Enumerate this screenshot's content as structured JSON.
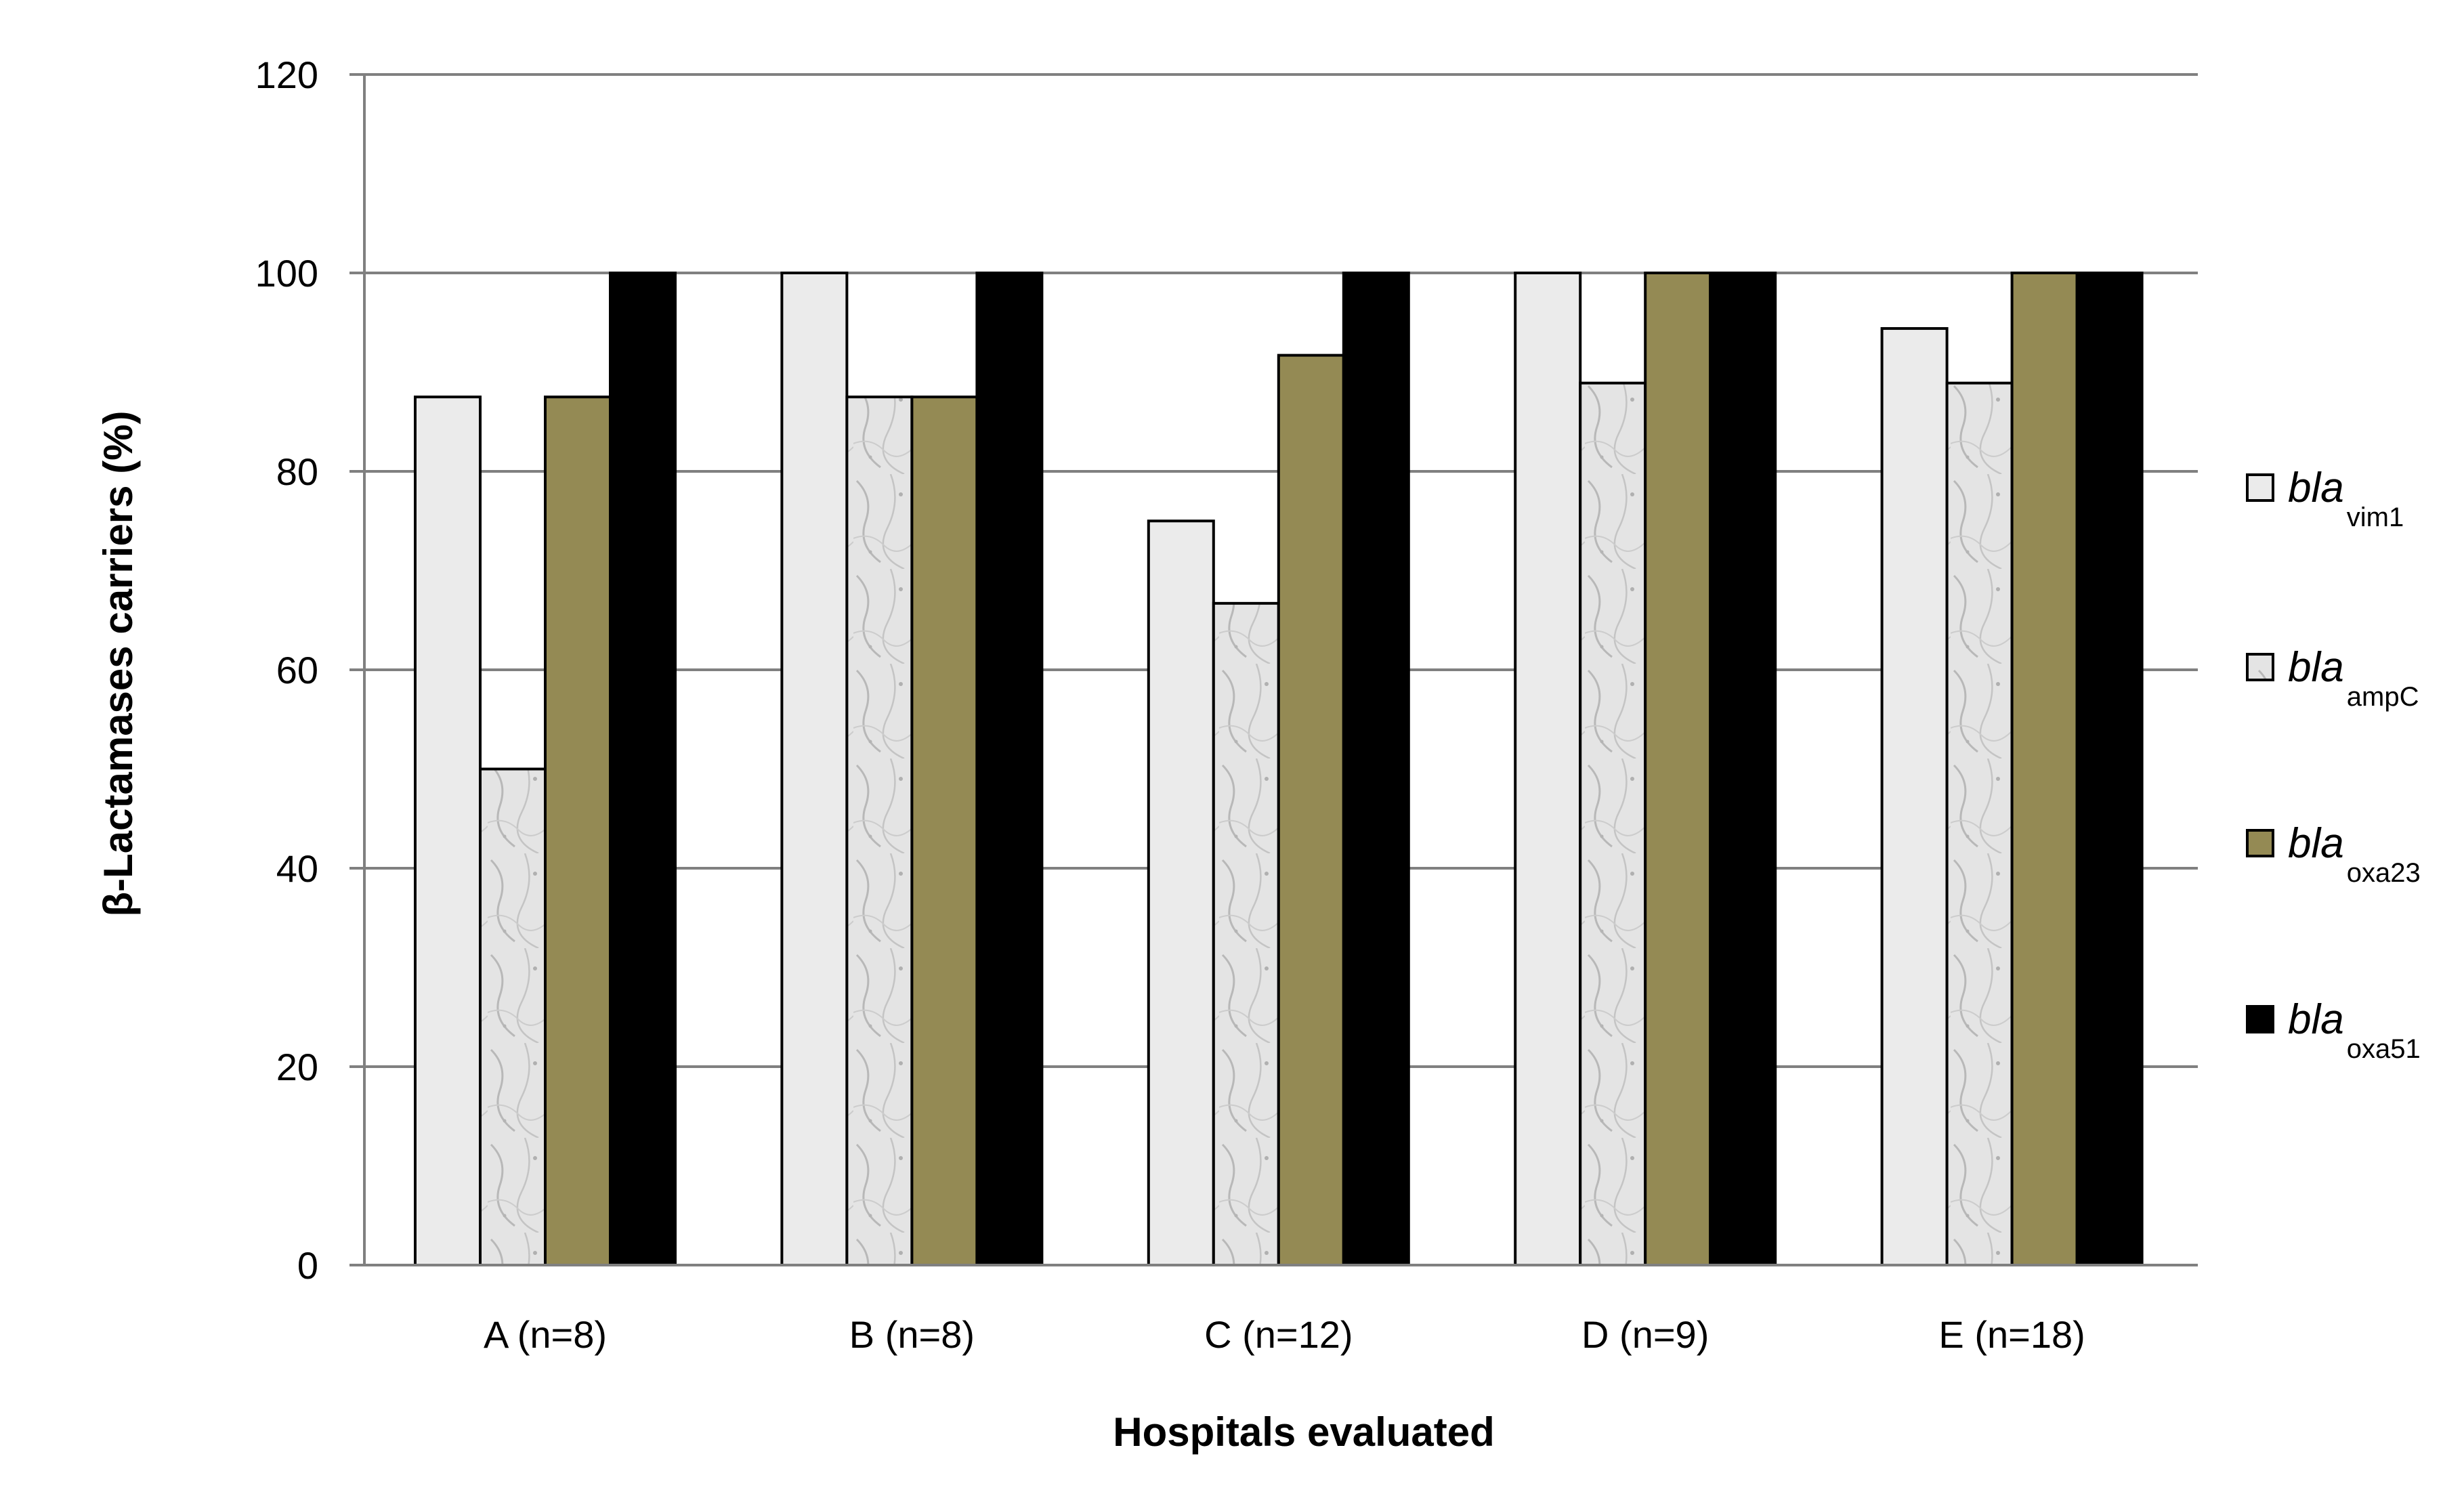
{
  "chart_data": {
    "type": "bar",
    "title": "",
    "xlabel": "Hospitals evaluated",
    "ylabel": "β-Lactamases carriers (%)",
    "ylim": [
      0,
      120
    ],
    "yticks": [
      "0",
      "20",
      "40",
      "60",
      "80",
      "100",
      "120"
    ],
    "grid": true,
    "legend_position": "right",
    "categories": [
      "A  (n=8)",
      "B (n=8)",
      "C (n=12)",
      "D (n=9)",
      "E (n=18)"
    ],
    "series": [
      {
        "name": "bla",
        "sub": "vim1",
        "color": "#ebebeb",
        "values": [
          87.5,
          100,
          75,
          100,
          94.4
        ]
      },
      {
        "name": "bla",
        "sub": "ampC",
        "color": "#dadada",
        "values": [
          50,
          87.5,
          66.7,
          88.9,
          88.9
        ]
      },
      {
        "name": "bla",
        "sub": "oxa23",
        "color": "#948a54",
        "values": [
          87.5,
          87.5,
          91.7,
          100,
          100
        ]
      },
      {
        "name": "bla",
        "sub": "oxa51",
        "color": "#000000",
        "values": [
          100,
          100,
          100,
          100,
          100
        ]
      }
    ]
  }
}
